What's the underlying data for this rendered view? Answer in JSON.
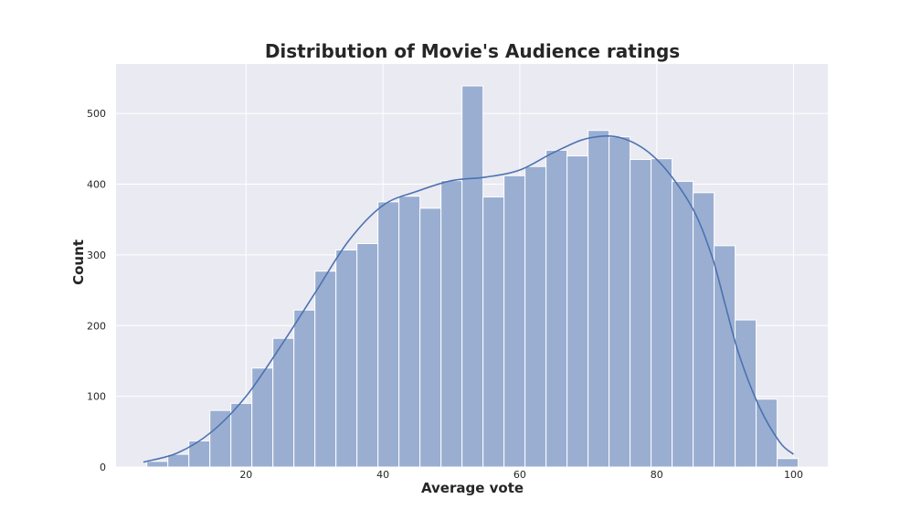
{
  "chart_data": {
    "type": "bar",
    "title": "Distribution of Movie's Audience ratings",
    "xlabel": "Average vote",
    "ylabel": "Count",
    "xlim": [
      1,
      105
    ],
    "ylim": [
      0,
      570
    ],
    "xticks": [
      20,
      40,
      60,
      80,
      100
    ],
    "yticks": [
      0,
      100,
      200,
      300,
      400,
      500
    ],
    "grid": true,
    "bin_start": 5.5,
    "bin_width": 3.07,
    "counts": [
      8,
      18,
      37,
      80,
      90,
      140,
      182,
      222,
      277,
      307,
      316,
      375,
      383,
      366,
      405,
      539,
      382,
      412,
      425,
      448,
      440,
      476,
      467,
      435,
      436,
      404,
      388,
      313,
      208,
      96,
      12
    ],
    "kde": {
      "x": [
        5,
        10,
        15,
        20,
        25,
        30,
        35,
        40,
        45,
        50,
        55,
        60,
        65,
        70,
        75,
        80,
        85,
        88,
        90,
        92,
        95,
        98,
        100
      ],
      "y": [
        7,
        20,
        50,
        100,
        170,
        245,
        320,
        370,
        390,
        405,
        410,
        420,
        445,
        465,
        465,
        435,
        370,
        300,
        230,
        160,
        85,
        35,
        18
      ]
    },
    "colors": {
      "bar_fill": "#9aaed2",
      "bar_edge": "#ffffff",
      "kde_line": "#4c72b0",
      "axes_bg": "#eaeaf2",
      "grid": "#ffffff"
    }
  }
}
